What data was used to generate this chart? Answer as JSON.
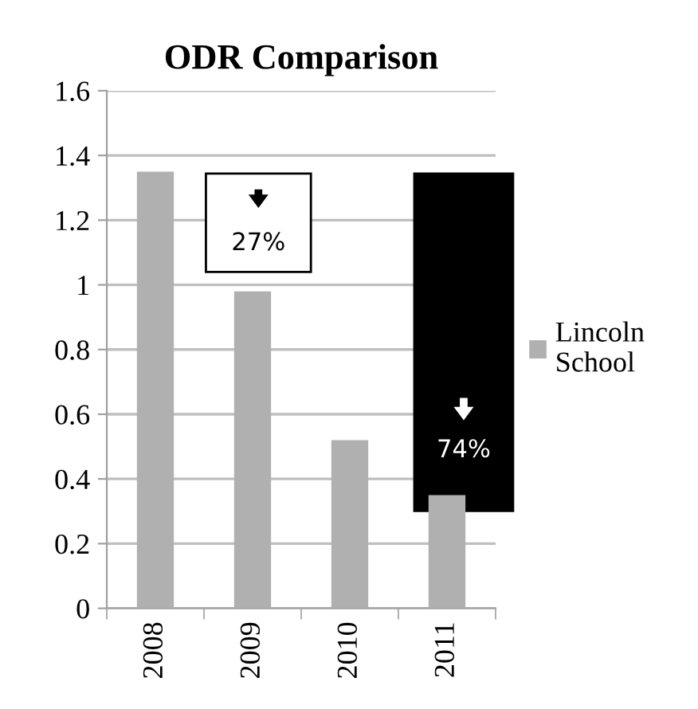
{
  "chart_data": {
    "type": "bar",
    "title": "ODR Comparison",
    "categories": [
      "2008",
      "2009",
      "2010",
      "2011"
    ],
    "series": [
      {
        "name": "Lincoln School",
        "color": "#b0b0b0",
        "values": [
          1.35,
          0.98,
          0.52,
          0.35
        ]
      }
    ],
    "ylim": [
      0,
      1.6
    ],
    "yticks": [
      0,
      0.2,
      0.4,
      0.6,
      0.8,
      1,
      1.2,
      1.4,
      1.6
    ],
    "grid": "y",
    "legend": "right",
    "annotations": [
      "27%",
      "74%"
    ]
  }
}
